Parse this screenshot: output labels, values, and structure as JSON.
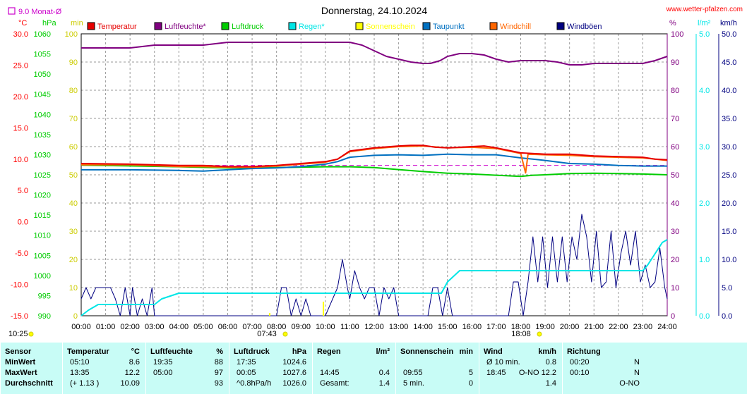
{
  "chart_data": {
    "type": "line",
    "title": "Donnerstag, 24.10.2024",
    "watermark": "www.wetter-pfalzen.com",
    "monthly_avg_label": "9.0 Monat-Ø",
    "monthly_avg_color": "#cc00cc",
    "left_axes": [
      {
        "unit": "°C",
        "color": "#ff0000",
        "ticks": [
          "30.0",
          "25.0",
          "20.0",
          "15.0",
          "10.0",
          "5.0",
          "0.0",
          "-5.0",
          "-10.0",
          "-15.0"
        ],
        "range": [
          -15,
          30
        ]
      },
      {
        "unit": "hPa",
        "color": "#00cc00",
        "ticks": [
          "1060",
          "1055",
          "1050",
          "1045",
          "1040",
          "1035",
          "1030",
          "1025",
          "1020",
          "1015",
          "1010",
          "1005",
          "1000",
          "995",
          "990"
        ],
        "range": [
          990,
          1060
        ]
      },
      {
        "unit": "min",
        "color": "#cccc00",
        "ticks": [
          "100",
          "90",
          "80",
          "70",
          "60",
          "50",
          "40",
          "30",
          "20",
          "10",
          "0"
        ],
        "range": [
          0,
          100
        ]
      }
    ],
    "right_axes": [
      {
        "unit": "%",
        "color": "#800080",
        "ticks": [
          "100",
          "90",
          "80",
          "70",
          "60",
          "50",
          "40",
          "30",
          "20",
          "10",
          "0"
        ],
        "range": [
          0,
          100
        ]
      },
      {
        "unit": "l/m²",
        "color": "#00e6e6",
        "ticks": [
          "5.0",
          "4.0",
          "3.0",
          "2.0",
          "1.0",
          "0.0"
        ],
        "range": [
          0,
          5
        ]
      },
      {
        "unit": "km/h",
        "color": "#000080",
        "ticks": [
          "50.0",
          "45.0",
          "40.0",
          "35.0",
          "30.0",
          "25.0",
          "20.0",
          "15.0",
          "10.0",
          "5.0",
          "0.0"
        ],
        "range": [
          0,
          50
        ]
      }
    ],
    "x_ticks": [
      "00:00",
      "01:00",
      "02:00",
      "03:00",
      "04:00",
      "05:00",
      "06:00",
      "07:00",
      "08:00",
      "09:00",
      "10:00",
      "11:00",
      "12:00",
      "13:00",
      "14:00",
      "15:00",
      "16:00",
      "17:00",
      "18:00",
      "19:00",
      "20:00",
      "21:00",
      "22:00",
      "23:00",
      "24:00"
    ],
    "markers": [
      {
        "label": "10:25",
        "x_hour": null
      },
      {
        "label": "07:43",
        "x_hour": 7.72
      },
      {
        "label": "18:08",
        "x_hour": 18.13
      }
    ],
    "grid": true,
    "legend_position": "top",
    "series": [
      {
        "name": "Temperatur",
        "axis": "°C",
        "color": "#e60000",
        "x": [
          0,
          2,
          4,
          5,
          6,
          7,
          8,
          9,
          10,
          10.5,
          11,
          12,
          13,
          13.5,
          14,
          14.5,
          15,
          16,
          16.5,
          17,
          18,
          19,
          20,
          21,
          22,
          23,
          23.5,
          24
        ],
        "values": [
          9.3,
          9.2,
          9.0,
          9.0,
          8.8,
          8.8,
          9.0,
          9.3,
          9.6,
          10.0,
          11.3,
          11.8,
          12.1,
          12.2,
          12.2,
          11.9,
          11.8,
          12.0,
          12.1,
          11.8,
          11.0,
          10.8,
          10.8,
          10.5,
          10.4,
          10.3,
          10.0,
          9.9
        ]
      },
      {
        "name": "Luftfeuchte*",
        "axis": "%",
        "color": "#800080",
        "x": [
          0,
          1,
          2,
          3,
          4,
          5,
          6,
          7,
          8,
          9,
          10,
          11,
          11.5,
          12,
          12.5,
          13,
          13.5,
          14,
          14.3,
          14.7,
          15,
          15.5,
          16,
          16.5,
          17,
          17.5,
          18,
          19,
          19.5,
          20,
          20.5,
          21,
          22,
          23,
          23.5,
          24
        ],
        "values": [
          95,
          95,
          95,
          96,
          96,
          96,
          97,
          97,
          97,
          97,
          97,
          97,
          96,
          94,
          92,
          91,
          90,
          89.5,
          89.5,
          90.5,
          92,
          93,
          93,
          92.5,
          91,
          90,
          90.5,
          90.5,
          90,
          89,
          89,
          89.5,
          89.5,
          89.5,
          90.5,
          92
        ]
      },
      {
        "name": "Luftdruck",
        "axis": "hPa",
        "color": "#00cc00",
        "x": [
          0,
          2,
          4,
          6,
          8,
          10,
          11,
          12,
          13,
          14,
          15,
          16,
          17,
          18,
          18.5,
          19,
          20,
          21,
          22,
          23,
          24
        ],
        "values": [
          1027.4,
          1027.2,
          1027.0,
          1026.7,
          1026.8,
          1027.0,
          1027.0,
          1026.8,
          1026.3,
          1025.8,
          1025.4,
          1025.2,
          1024.9,
          1024.6,
          1024.9,
          1025.0,
          1025.3,
          1025.4,
          1025.3,
          1025.2,
          1025.0
        ]
      },
      {
        "name": "Regen*",
        "axis": "l/m²",
        "color": "#00e6e6",
        "x": [
          0,
          0.3,
          0.7,
          1,
          2,
          3,
          3.3,
          4,
          6,
          8,
          10,
          14,
          14.75,
          15,
          15.5,
          17,
          18.5,
          19,
          21,
          22,
          22.5,
          23,
          23.2,
          23.5,
          23.8,
          24
        ],
        "values": [
          0,
          0.1,
          0.2,
          0.2,
          0.2,
          0.2,
          0.3,
          0.4,
          0.4,
          0.4,
          0.4,
          0.4,
          0.4,
          0.6,
          0.8,
          0.8,
          0.8,
          0.8,
          0.8,
          0.8,
          0.8,
          0.8,
          0.9,
          1.1,
          1.3,
          1.35
        ]
      },
      {
        "name": "Sonnenschein",
        "axis": "min",
        "color": "#ffff00",
        "x": [
          7.72,
          9.92
        ],
        "values": [
          1,
          5
        ]
      },
      {
        "name": "Taupunkt",
        "axis": "°C",
        "color": "#0070c0",
        "x": [
          0,
          2,
          4,
          5,
          6,
          7,
          8,
          9,
          10,
          10.5,
          11,
          12,
          13,
          14,
          15,
          16,
          17,
          18,
          19,
          20,
          21,
          22,
          23,
          24
        ],
        "values": [
          8.3,
          8.3,
          8.2,
          8.1,
          8.3,
          8.5,
          8.6,
          8.8,
          9.2,
          9.6,
          10.3,
          10.6,
          10.7,
          10.6,
          10.8,
          10.7,
          10.7,
          10.2,
          9.8,
          9.3,
          9.2,
          9.0,
          8.9,
          8.9
        ]
      },
      {
        "name": "Windchill",
        "axis": "°C",
        "color": "#ff6600",
        "x": [
          0,
          2,
          4,
          5,
          6,
          7,
          8,
          9,
          10,
          10.5,
          11,
          12,
          13,
          14,
          15,
          16,
          17,
          18,
          18.2,
          18.3,
          19,
          20,
          21,
          22,
          23,
          24
        ],
        "values": [
          9.1,
          9.1,
          8.8,
          8.8,
          8.7,
          8.7,
          8.9,
          9.2,
          9.5,
          10.0,
          11.2,
          11.7,
          12.0,
          12.1,
          11.8,
          11.9,
          11.7,
          10.9,
          7.8,
          10.8,
          10.7,
          10.6,
          10.4,
          10.3,
          10.2,
          9.8
        ]
      },
      {
        "name": "Windböen",
        "axis": "km/h",
        "color": "#000080",
        "x": [
          0,
          0.2,
          0.4,
          0.6,
          0.8,
          1,
          1.2,
          1.4,
          1.6,
          1.8,
          2,
          2.1,
          2.3,
          2.5,
          2.7,
          2.9,
          3,
          3.2,
          8,
          8.2,
          8.4,
          8.6,
          8.8,
          9,
          9.2,
          9.4,
          10,
          10.5,
          10.7,
          10.9,
          11,
          11.2,
          11.4,
          11.6,
          11.8,
          12,
          12.2,
          12.4,
          12.6,
          12.8,
          13,
          13.2,
          14.2,
          14.4,
          14.6,
          14.8,
          15,
          15.2,
          15.4,
          17.5,
          17.7,
          17.9,
          18.1,
          18.3,
          18.5,
          18.7,
          18.9,
          19.1,
          19.3,
          19.5,
          19.7,
          19.9,
          20.1,
          20.3,
          20.5,
          20.7,
          20.9,
          21.1,
          21.3,
          21.5,
          21.7,
          21.9,
          22.1,
          22.3,
          22.5,
          22.7,
          22.9,
          23.1,
          23.3,
          23.5,
          23.7,
          23.9,
          24
        ],
        "values": [
          3,
          5,
          3,
          5,
          5,
          5,
          5,
          3,
          0,
          5,
          0,
          5,
          0,
          3,
          0,
          5,
          0,
          0,
          0,
          5,
          5,
          0,
          3,
          0,
          3,
          0,
          0,
          5,
          10,
          5,
          3,
          8,
          5,
          3,
          5,
          5,
          0,
          5,
          3,
          5,
          0,
          0,
          0,
          5,
          5,
          0,
          5,
          0,
          0,
          0,
          6,
          6,
          0,
          6,
          14,
          6,
          14,
          5,
          14,
          6,
          14,
          6,
          14,
          10,
          18,
          14,
          6,
          15,
          5,
          6,
          15,
          5,
          11,
          15,
          9,
          15,
          6,
          9,
          5,
          6,
          12,
          5,
          3
        ]
      }
    ]
  },
  "stats": {
    "columns": [
      {
        "title": "Sensor",
        "unit": "",
        "rows": [
          "MinWert",
          "MaxWert",
          "Durchschnitt"
        ]
      },
      {
        "title": "Temperatur",
        "unit": "°C",
        "times": [
          "05:10",
          "13:35",
          "(+ 1.13 )"
        ],
        "values": [
          "8.6",
          "12.2",
          "10.09"
        ]
      },
      {
        "title": "Luftfeuchte",
        "unit": "%",
        "times": [
          "19:35",
          "05:00",
          ""
        ],
        "values": [
          "88",
          "97",
          "93"
        ]
      },
      {
        "title": "Luftdruck",
        "unit": "hPa",
        "times": [
          "17:35",
          "00:05",
          "^0.8hPa/h"
        ],
        "values": [
          "1024.6",
          "1027.6",
          "1026.0"
        ]
      },
      {
        "title": "Regen",
        "unit": "l/m²",
        "times": [
          "",
          "14:45",
          "Gesamt:"
        ],
        "values": [
          "",
          "0.4",
          "1.4"
        ]
      },
      {
        "title": "Sonnenschein",
        "unit": "min",
        "times": [
          "",
          "09:55",
          "5 min."
        ],
        "values": [
          "",
          "5",
          "0"
        ]
      },
      {
        "title": "Wind",
        "unit": "km/h",
        "times": [
          "Ø 10 min.",
          "18:45",
          ""
        ],
        "values": [
          "0.8",
          "O-NO 12.2",
          "1.4"
        ]
      },
      {
        "title": "Richtung",
        "unit": "",
        "times": [
          "00:20",
          "00:10",
          ""
        ],
        "values": [
          "N",
          "N",
          "O-NO"
        ]
      }
    ]
  }
}
